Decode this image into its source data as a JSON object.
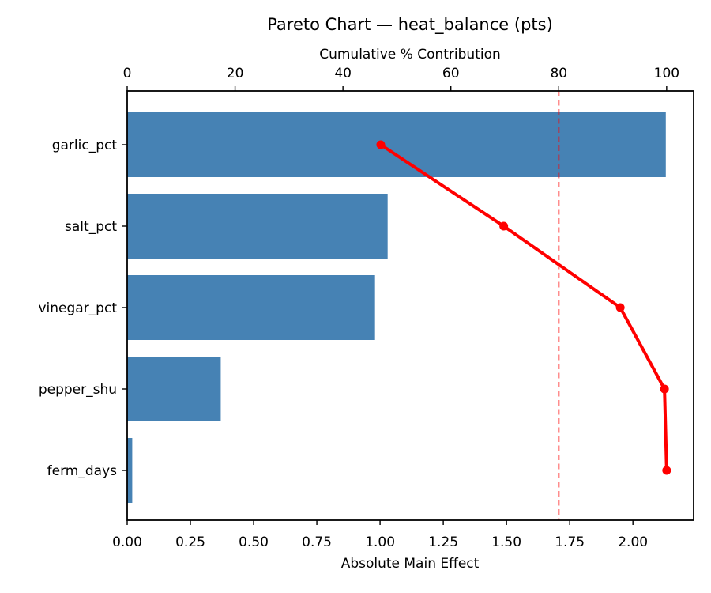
{
  "figure": {
    "title": "Pareto Chart — heat_balance (pts)"
  },
  "chart_data": {
    "type": "bar",
    "subtype": "pareto-combo",
    "orientation": "horizontal-bars",
    "title": "Pareto Chart — heat_balance (pts)",
    "categories": [
      "garlic_pct",
      "salt_pct",
      "vinegar_pct",
      "pepper_shu",
      "ferm_days"
    ],
    "series": [
      {
        "name": "Absolute Main Effect",
        "type": "bar",
        "axis": "bottom",
        "values": [
          2.13,
          1.03,
          0.98,
          0.37,
          0.02
        ]
      },
      {
        "name": "Cumulative % Contribution",
        "type": "line",
        "axis": "top",
        "marker": "circle",
        "values": [
          47.0,
          69.8,
          91.4,
          99.6,
          100.0
        ]
      }
    ],
    "bottom_axis": {
      "label": "Absolute Main Effect",
      "ticks": [
        "0.00",
        "0.25",
        "0.50",
        "0.75",
        "1.00",
        "1.25",
        "1.50",
        "1.75",
        "2.00"
      ],
      "range": [
        0,
        2.24
      ]
    },
    "top_axis": {
      "label": "Cumulative % Contribution",
      "ticks": [
        "0",
        "20",
        "40",
        "60",
        "80",
        "100"
      ],
      "range": [
        0,
        105
      ]
    },
    "threshold_line": {
      "axis": "top",
      "value": 80,
      "style": "dashed"
    },
    "grid": false,
    "legend": false,
    "colors": {
      "bar": "#4682B4",
      "line": "#FF0000",
      "marker": "#FF0000",
      "threshold": "#FF0000",
      "threshold_opacity": 0.55,
      "text": "#000000",
      "spine": "#000000",
      "background": "#FFFFFF"
    }
  }
}
